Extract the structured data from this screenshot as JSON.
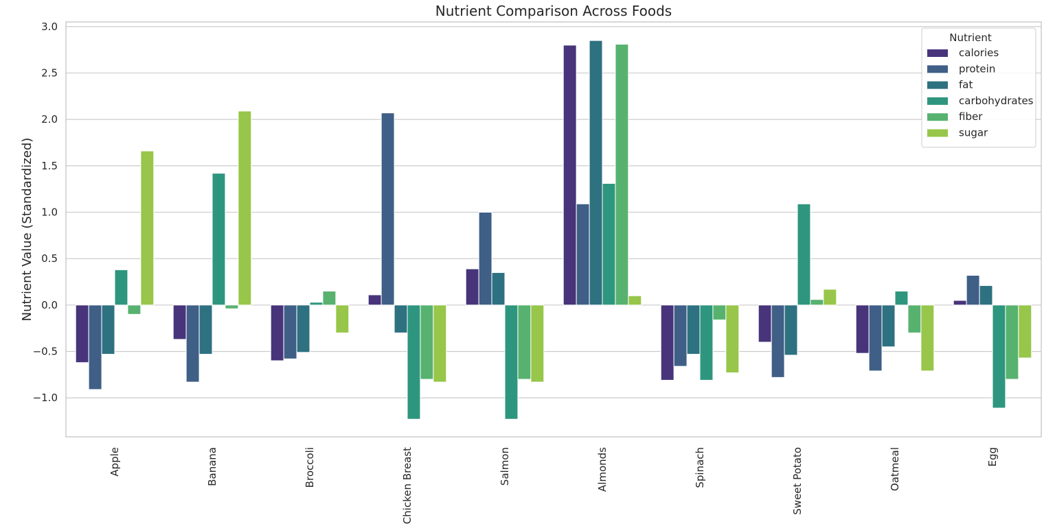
{
  "chart_data": {
    "type": "bar",
    "title": "Nutrient Comparison Across Foods",
    "xlabel": "",
    "ylabel": "Nutrient Value (Standardized)",
    "ylim": [
      -1.42,
      3.05
    ],
    "yticks": [
      "−1.0",
      "−0.5",
      "0.0",
      "0.5",
      "1.0",
      "1.5",
      "2.0",
      "2.5",
      "3.0"
    ],
    "ytick_values": [
      -1.0,
      -0.5,
      0.0,
      0.5,
      1.0,
      1.5,
      2.0,
      2.5,
      3.0
    ],
    "grid": "horizontal",
    "legend": {
      "title": "Nutrient",
      "placement": "top-right"
    },
    "categories": [
      "Apple",
      "Banana",
      "Broccoli",
      "Chicken Breast",
      "Salmon",
      "Almonds",
      "Spinach",
      "Sweet Potato",
      "Oatmeal",
      "Egg"
    ],
    "series": [
      {
        "name": "calories",
        "color": "#48347a",
        "values": [
          -0.62,
          -0.37,
          -0.6,
          0.11,
          0.39,
          2.8,
          -0.81,
          -0.4,
          -0.52,
          0.05
        ]
      },
      {
        "name": "protein",
        "color": "#3f5f87",
        "values": [
          -0.91,
          -0.83,
          -0.58,
          2.07,
          1.0,
          1.09,
          -0.66,
          -0.78,
          -0.71,
          0.32
        ]
      },
      {
        "name": "fat",
        "color": "#2e7181",
        "values": [
          -0.53,
          -0.53,
          -0.51,
          -0.3,
          0.35,
          2.85,
          -0.53,
          -0.54,
          -0.45,
          0.21
        ]
      },
      {
        "name": "carbohydrates",
        "color": "#2e967e",
        "values": [
          0.38,
          1.42,
          0.03,
          -1.23,
          -1.23,
          1.31,
          -0.81,
          1.09,
          0.15,
          -1.11
        ]
      },
      {
        "name": "fiber",
        "color": "#58b26f",
        "values": [
          -0.1,
          -0.04,
          0.15,
          -0.8,
          -0.8,
          2.81,
          -0.16,
          0.06,
          -0.3,
          -0.8
        ]
      },
      {
        "name": "sugar",
        "color": "#97c64a",
        "values": [
          1.66,
          2.09,
          -0.3,
          -0.83,
          -0.83,
          0.1,
          -0.73,
          0.17,
          -0.71,
          -0.57
        ]
      }
    ]
  }
}
